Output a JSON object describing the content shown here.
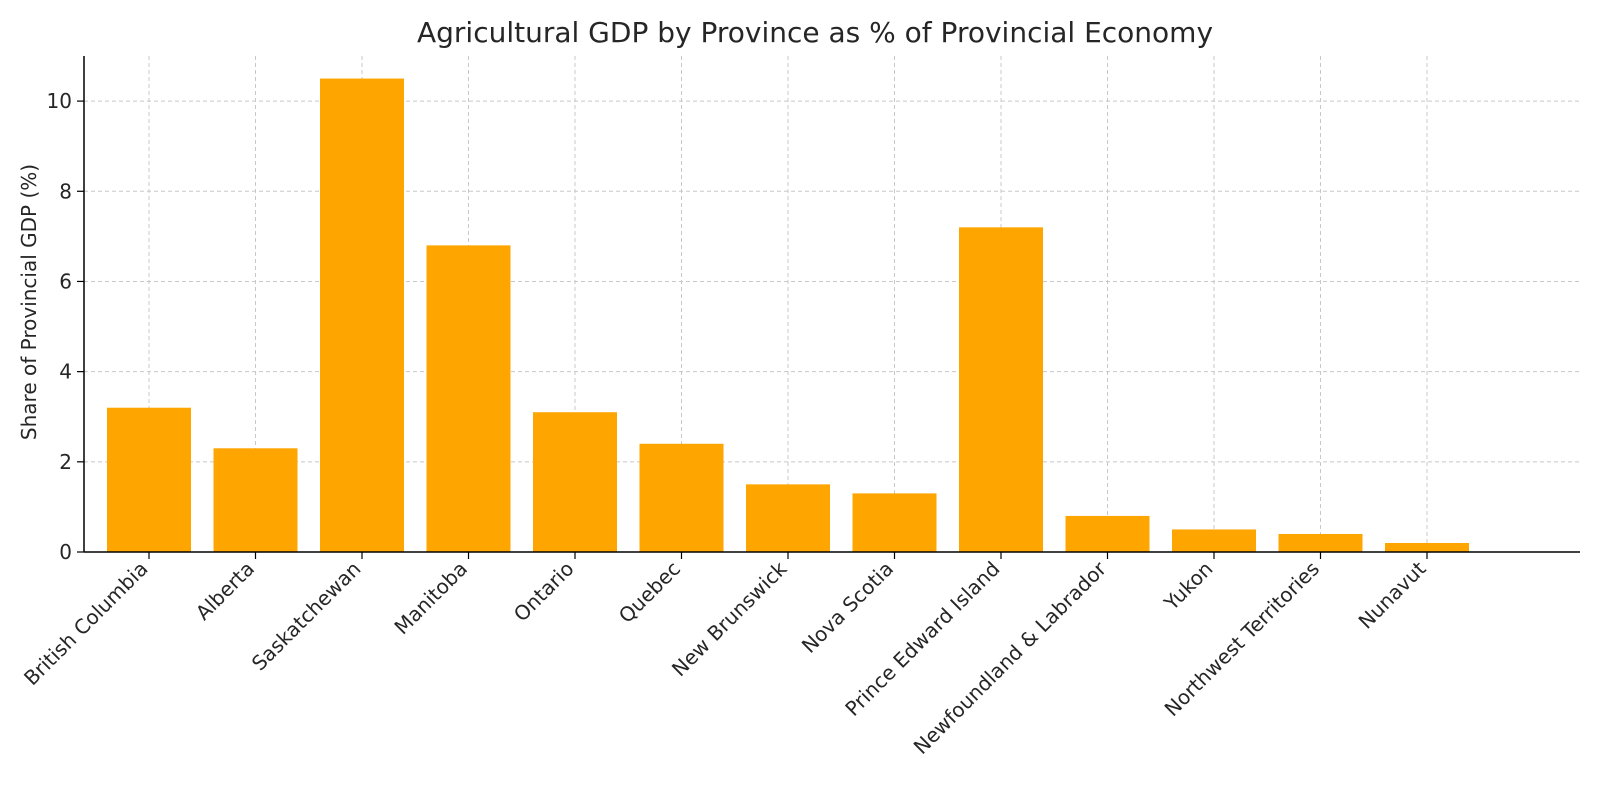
{
  "chart_data": {
    "type": "bar",
    "title": "Agricultural GDP by Province as % of Provincial Economy",
    "xlabel": "",
    "ylabel": "Share of Provincial GDP (%)",
    "categories": [
      "British Columbia",
      "Alberta",
      "Saskatchewan",
      "Manitoba",
      "Ontario",
      "Quebec",
      "New Brunswick",
      "Nova Scotia",
      "Prince Edward Island",
      "Newfoundland & Labrador",
      "Yukon",
      "Northwest Territories",
      "Nunavut"
    ],
    "values": [
      3.2,
      2.3,
      10.5,
      6.8,
      3.1,
      2.4,
      1.5,
      1.3,
      7.2,
      0.8,
      0.5,
      0.4,
      0.2
    ],
    "yticks": [
      0,
      2,
      4,
      6,
      8,
      10
    ],
    "ylim": [
      0,
      11
    ],
    "grid": true,
    "bar_color": "#FFA500",
    "axis_color": "#000000",
    "grid_color": "#c8c8c8"
  }
}
